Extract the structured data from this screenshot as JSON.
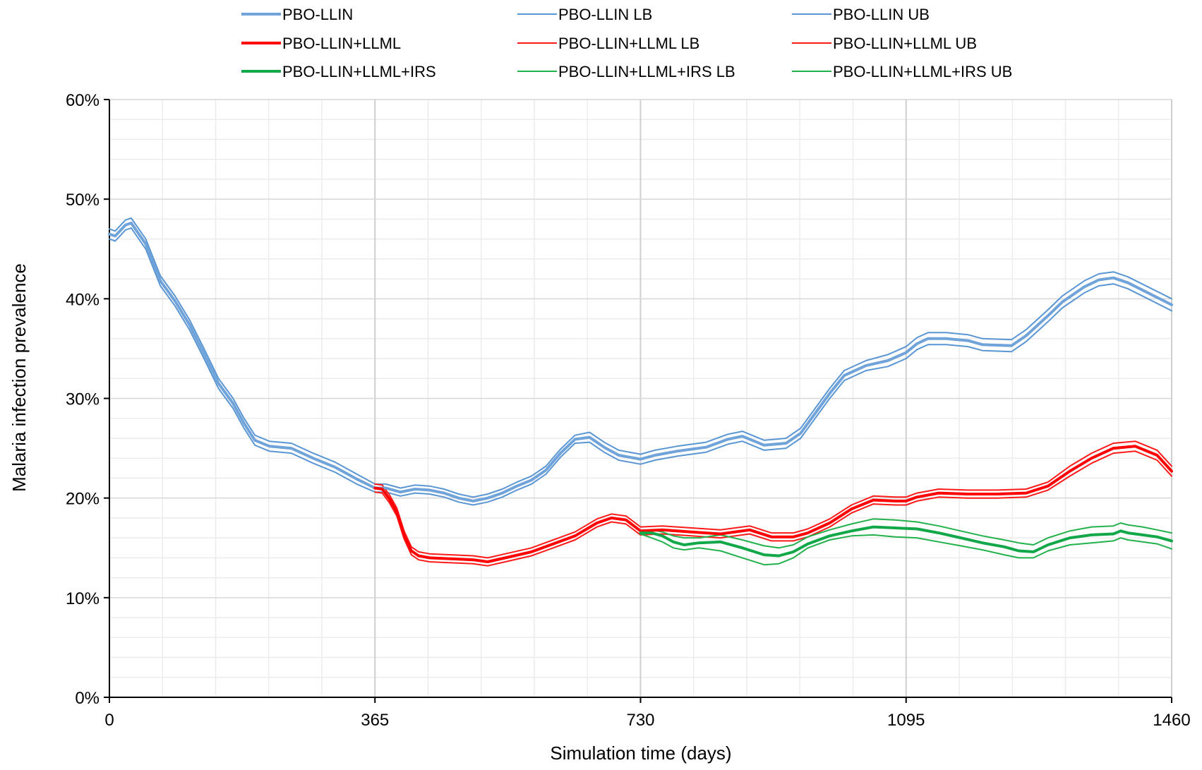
{
  "chart_data": {
    "type": "line",
    "title": "",
    "xlabel": "Simulation time (days)",
    "ylabel": "Malaria infection prevalence",
    "xlim": [
      0,
      1460
    ],
    "ylim": [
      0,
      0.6
    ],
    "x_ticks": [
      0,
      365,
      730,
      1095,
      1460
    ],
    "x_tick_labels": [
      "0",
      "365",
      "730",
      "1095",
      "1460"
    ],
    "y_ticks": [
      0,
      0.1,
      0.2,
      0.3,
      0.4,
      0.5,
      0.6
    ],
    "y_tick_labels": [
      "0%",
      "10%",
      "20%",
      "30%",
      "40%",
      "50%",
      "60%"
    ],
    "grid": true,
    "legend_position": "top",
    "series": [
      {
        "name": "PBO-LLIN",
        "color": "#6fa3d9",
        "width": 4,
        "x": [
          0,
          8,
          22,
          30,
          50,
          70,
          90,
          110,
          130,
          150,
          170,
          185,
          200,
          220,
          250,
          280,
          310,
          340,
          365,
          380,
          400,
          420,
          440,
          460,
          480,
          500,
          520,
          540,
          560,
          580,
          600,
          620,
          640,
          660,
          680,
          700,
          730,
          750,
          780,
          820,
          850,
          870,
          900,
          930,
          950,
          970,
          990,
          1010,
          1040,
          1070,
          1095,
          1110,
          1125,
          1150,
          1180,
          1200,
          1240,
          1260,
          1290,
          1310,
          1340,
          1360,
          1380,
          1400,
          1430,
          1460
        ],
        "y": [
          0.465,
          0.463,
          0.474,
          0.476,
          0.455,
          0.418,
          0.398,
          0.374,
          0.345,
          0.315,
          0.295,
          0.275,
          0.258,
          0.252,
          0.25,
          0.24,
          0.231,
          0.219,
          0.21,
          0.21,
          0.206,
          0.209,
          0.208,
          0.205,
          0.2,
          0.197,
          0.2,
          0.205,
          0.212,
          0.218,
          0.228,
          0.245,
          0.259,
          0.261,
          0.251,
          0.243,
          0.239,
          0.243,
          0.247,
          0.251,
          0.259,
          0.262,
          0.253,
          0.255,
          0.265,
          0.285,
          0.305,
          0.323,
          0.333,
          0.338,
          0.346,
          0.355,
          0.36,
          0.36,
          0.358,
          0.354,
          0.353,
          0.363,
          0.383,
          0.397,
          0.412,
          0.419,
          0.421,
          0.416,
          0.405,
          0.394
        ]
      },
      {
        "name": "PBO-LLIN LB",
        "color": "#5a96d3",
        "width": 2,
        "x": [
          0,
          8,
          22,
          30,
          50,
          70,
          90,
          110,
          130,
          150,
          170,
          185,
          200,
          220,
          250,
          280,
          310,
          340,
          365,
          380,
          400,
          420,
          440,
          460,
          480,
          500,
          520,
          540,
          560,
          580,
          600,
          620,
          640,
          660,
          680,
          700,
          730,
          750,
          780,
          820,
          850,
          870,
          900,
          930,
          950,
          970,
          990,
          1010,
          1040,
          1070,
          1095,
          1110,
          1125,
          1150,
          1180,
          1200,
          1240,
          1260,
          1290,
          1310,
          1340,
          1360,
          1380,
          1400,
          1430,
          1460
        ],
        "y": [
          0.46,
          0.458,
          0.469,
          0.471,
          0.45,
          0.413,
          0.393,
          0.369,
          0.34,
          0.31,
          0.29,
          0.27,
          0.253,
          0.247,
          0.245,
          0.235,
          0.226,
          0.214,
          0.206,
          0.206,
          0.202,
          0.205,
          0.204,
          0.201,
          0.196,
          0.193,
          0.196,
          0.201,
          0.208,
          0.214,
          0.224,
          0.241,
          0.255,
          0.256,
          0.246,
          0.238,
          0.234,
          0.238,
          0.242,
          0.246,
          0.254,
          0.257,
          0.248,
          0.25,
          0.26,
          0.28,
          0.3,
          0.318,
          0.328,
          0.332,
          0.34,
          0.349,
          0.354,
          0.354,
          0.352,
          0.348,
          0.347,
          0.357,
          0.377,
          0.391,
          0.406,
          0.413,
          0.415,
          0.41,
          0.399,
          0.388
        ]
      },
      {
        "name": "PBO-LLIN UB",
        "color": "#5a96d3",
        "width": 2,
        "x": [
          0,
          8,
          22,
          30,
          50,
          70,
          90,
          110,
          130,
          150,
          170,
          185,
          200,
          220,
          250,
          280,
          310,
          340,
          365,
          380,
          400,
          420,
          440,
          460,
          480,
          500,
          520,
          540,
          560,
          580,
          600,
          620,
          640,
          660,
          680,
          700,
          730,
          750,
          780,
          820,
          850,
          870,
          900,
          930,
          950,
          970,
          990,
          1010,
          1040,
          1070,
          1095,
          1110,
          1125,
          1150,
          1180,
          1200,
          1240,
          1260,
          1290,
          1310,
          1340,
          1360,
          1380,
          1400,
          1430,
          1460
        ],
        "y": [
          0.47,
          0.468,
          0.479,
          0.481,
          0.46,
          0.423,
          0.403,
          0.379,
          0.35,
          0.32,
          0.3,
          0.28,
          0.263,
          0.257,
          0.255,
          0.245,
          0.236,
          0.224,
          0.214,
          0.214,
          0.21,
          0.213,
          0.212,
          0.209,
          0.204,
          0.201,
          0.204,
          0.209,
          0.216,
          0.222,
          0.232,
          0.249,
          0.263,
          0.266,
          0.256,
          0.248,
          0.244,
          0.248,
          0.252,
          0.256,
          0.264,
          0.267,
          0.258,
          0.26,
          0.27,
          0.29,
          0.31,
          0.328,
          0.338,
          0.344,
          0.352,
          0.361,
          0.366,
          0.366,
          0.364,
          0.36,
          0.359,
          0.369,
          0.389,
          0.403,
          0.418,
          0.425,
          0.427,
          0.422,
          0.411,
          0.4
        ]
      },
      {
        "name": "PBO-LLIN+LLML",
        "color": "#ff0000",
        "width": 4,
        "x": [
          365,
          375,
          385,
          395,
          405,
          415,
          425,
          440,
          470,
          500,
          520,
          550,
          580,
          610,
          640,
          670,
          690,
          710,
          730,
          760,
          800,
          840,
          880,
          910,
          940,
          960,
          990,
          1020,
          1050,
          1080,
          1095,
          1110,
          1140,
          1180,
          1220,
          1260,
          1290,
          1320,
          1350,
          1380,
          1410,
          1440,
          1460
        ],
        "y": [
          0.21,
          0.209,
          0.199,
          0.186,
          0.163,
          0.147,
          0.142,
          0.14,
          0.139,
          0.138,
          0.136,
          0.141,
          0.146,
          0.154,
          0.162,
          0.175,
          0.18,
          0.178,
          0.167,
          0.168,
          0.166,
          0.164,
          0.168,
          0.161,
          0.161,
          0.165,
          0.175,
          0.189,
          0.198,
          0.197,
          0.197,
          0.201,
          0.205,
          0.204,
          0.204,
          0.205,
          0.212,
          0.227,
          0.24,
          0.25,
          0.252,
          0.243,
          0.227
        ]
      },
      {
        "name": "PBO-LLIN+LLML LB",
        "color": "#ff1a1a",
        "width": 2,
        "x": [
          365,
          375,
          385,
          395,
          405,
          415,
          425,
          440,
          470,
          500,
          520,
          550,
          580,
          610,
          640,
          670,
          690,
          710,
          730,
          760,
          800,
          840,
          880,
          910,
          940,
          960,
          990,
          1020,
          1050,
          1080,
          1095,
          1110,
          1140,
          1180,
          1220,
          1260,
          1290,
          1320,
          1350,
          1380,
          1410,
          1440,
          1460
        ],
        "y": [
          0.206,
          0.205,
          0.195,
          0.182,
          0.159,
          0.143,
          0.138,
          0.136,
          0.135,
          0.134,
          0.132,
          0.137,
          0.142,
          0.15,
          0.158,
          0.171,
          0.176,
          0.174,
          0.163,
          0.164,
          0.162,
          0.16,
          0.164,
          0.157,
          0.157,
          0.161,
          0.171,
          0.185,
          0.194,
          0.193,
          0.193,
          0.197,
          0.201,
          0.2,
          0.2,
          0.201,
          0.208,
          0.222,
          0.235,
          0.245,
          0.247,
          0.238,
          0.222
        ]
      },
      {
        "name": "PBO-LLIN+LLML UB",
        "color": "#ff1a1a",
        "width": 2,
        "x": [
          365,
          375,
          385,
          395,
          405,
          415,
          425,
          440,
          470,
          500,
          520,
          550,
          580,
          610,
          640,
          670,
          690,
          710,
          730,
          760,
          800,
          840,
          880,
          910,
          940,
          960,
          990,
          1020,
          1050,
          1080,
          1095,
          1110,
          1140,
          1180,
          1220,
          1260,
          1290,
          1320,
          1350,
          1380,
          1410,
          1440,
          1460
        ],
        "y": [
          0.214,
          0.213,
          0.203,
          0.19,
          0.167,
          0.151,
          0.146,
          0.144,
          0.143,
          0.142,
          0.14,
          0.145,
          0.15,
          0.158,
          0.166,
          0.179,
          0.184,
          0.182,
          0.171,
          0.172,
          0.17,
          0.168,
          0.172,
          0.165,
          0.165,
          0.169,
          0.179,
          0.193,
          0.202,
          0.201,
          0.201,
          0.205,
          0.209,
          0.208,
          0.208,
          0.209,
          0.216,
          0.232,
          0.245,
          0.255,
          0.257,
          0.248,
          0.232
        ]
      },
      {
        "name": "PBO-LLIN+LLML+IRS",
        "color": "#12a84a",
        "width": 4,
        "x": [
          730,
          745,
          760,
          775,
          790,
          810,
          840,
          870,
          900,
          920,
          940,
          960,
          990,
          1020,
          1050,
          1080,
          1110,
          1140,
          1170,
          1200,
          1230,
          1250,
          1270,
          1290,
          1320,
          1350,
          1380,
          1390,
          1400,
          1420,
          1440,
          1460
        ],
        "y": [
          0.165,
          0.165,
          0.162,
          0.156,
          0.153,
          0.155,
          0.156,
          0.15,
          0.143,
          0.142,
          0.146,
          0.154,
          0.162,
          0.167,
          0.171,
          0.17,
          0.169,
          0.165,
          0.16,
          0.155,
          0.151,
          0.147,
          0.146,
          0.153,
          0.16,
          0.163,
          0.164,
          0.167,
          0.165,
          0.163,
          0.161,
          0.157
        ]
      },
      {
        "name": "PBO-LLIN+LLML+IRS LB",
        "color": "#22b14c",
        "width": 2,
        "x": [
          730,
          745,
          760,
          775,
          790,
          810,
          840,
          870,
          900,
          920,
          940,
          960,
          990,
          1020,
          1050,
          1080,
          1110,
          1140,
          1170,
          1200,
          1230,
          1250,
          1270,
          1290,
          1320,
          1350,
          1380,
          1390,
          1400,
          1420,
          1440,
          1460
        ],
        "y": [
          0.164,
          0.16,
          0.156,
          0.15,
          0.148,
          0.15,
          0.147,
          0.14,
          0.133,
          0.134,
          0.14,
          0.15,
          0.158,
          0.162,
          0.163,
          0.161,
          0.16,
          0.156,
          0.152,
          0.148,
          0.143,
          0.14,
          0.14,
          0.147,
          0.153,
          0.155,
          0.157,
          0.16,
          0.158,
          0.156,
          0.154,
          0.149
        ]
      },
      {
        "name": "PBO-LLIN+LLML+IRS UB",
        "color": "#22b14c",
        "width": 2,
        "x": [
          730,
          745,
          760,
          775,
          790,
          810,
          840,
          870,
          900,
          920,
          940,
          960,
          990,
          1020,
          1050,
          1080,
          1110,
          1140,
          1170,
          1200,
          1230,
          1250,
          1270,
          1290,
          1320,
          1350,
          1380,
          1390,
          1400,
          1420,
          1440,
          1460
        ],
        "y": [
          0.167,
          0.168,
          0.166,
          0.162,
          0.16,
          0.16,
          0.163,
          0.158,
          0.152,
          0.15,
          0.153,
          0.161,
          0.168,
          0.174,
          0.179,
          0.178,
          0.176,
          0.172,
          0.167,
          0.162,
          0.158,
          0.155,
          0.153,
          0.16,
          0.167,
          0.171,
          0.172,
          0.175,
          0.173,
          0.171,
          0.168,
          0.165
        ]
      }
    ]
  }
}
